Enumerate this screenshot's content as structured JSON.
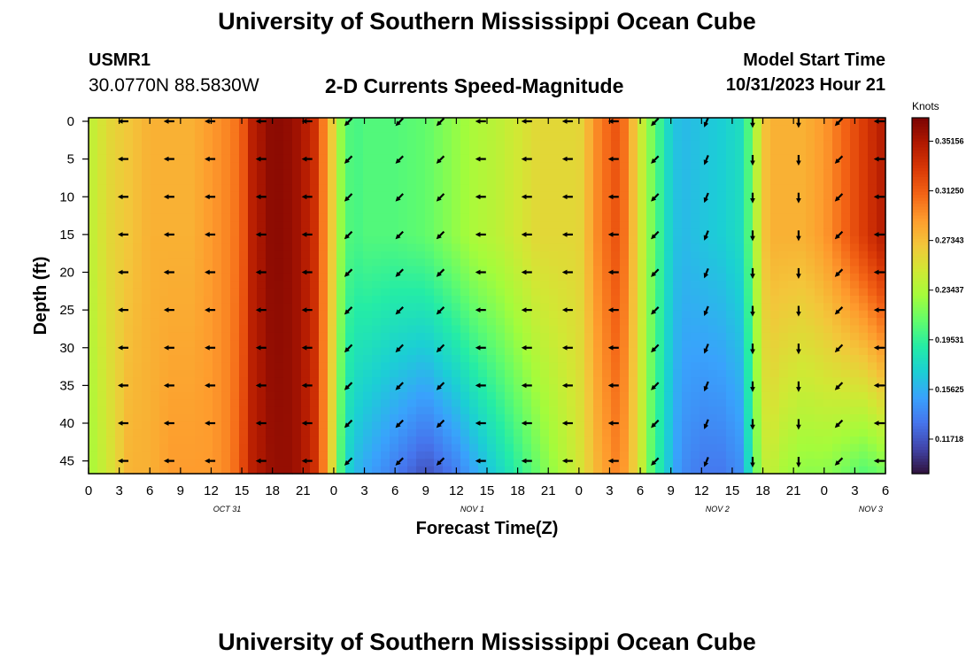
{
  "title": "University of Southern Mississippi Ocean Cube",
  "station": {
    "id": "USMR1",
    "coords": "30.0770N  88.5830W"
  },
  "model": {
    "label": "Model Start Time",
    "value": "10/31/2023 Hour 21"
  },
  "footer_title": "University of Southern Mississippi Ocean Cube",
  "chart_data": {
    "type": "heatmap",
    "title": "2-D Currents Speed-Magnitude",
    "xlabel": "Forecast Time(Z)",
    "ylabel": "Depth (ft)",
    "x_ticks": [
      "0",
      "3",
      "6",
      "9",
      "12",
      "15",
      "18",
      "21",
      "0",
      "3",
      "6",
      "9",
      "12",
      "15",
      "18",
      "21",
      "0",
      "3",
      "6",
      "9",
      "12",
      "15",
      "18",
      "21",
      "0",
      "3",
      "6"
    ],
    "date_labels": [
      {
        "label": "OCT 31",
        "tick_index": 4
      },
      {
        "label": "NOV 1",
        "tick_index": 12
      },
      {
        "label": "NOV 2",
        "tick_index": 20
      },
      {
        "label": "NOV 3",
        "tick_index": 25
      }
    ],
    "y_ticks": [
      "0",
      "5",
      "10",
      "15",
      "20",
      "25",
      "30",
      "35",
      "40",
      "45"
    ],
    "ylim": [
      0,
      48
    ],
    "x_range_hours": [
      0,
      78
    ],
    "colorbar": {
      "label": "Knots",
      "ticks": [
        "0.35156",
        "0.31250",
        "0.27343",
        "0.23437",
        "0.19531",
        "0.15625",
        "0.11718"
      ],
      "range": [
        0.09,
        0.37
      ],
      "colormap": [
        "#30123b",
        "#4145ab",
        "#4675ed",
        "#39a2fc",
        "#1bcfd4",
        "#24eca6",
        "#61fc6c",
        "#a4fc3b",
        "#d1e834",
        "#f3c63a",
        "#fe9b2d",
        "#f36315",
        "#d93806",
        "#b11901",
        "#7a0403"
      ]
    },
    "speed_profile": {
      "x_hours": [
        0,
        2,
        4,
        6,
        8,
        10,
        12,
        14,
        15,
        16,
        18,
        20,
        22,
        23,
        24,
        25,
        26,
        27,
        30,
        33,
        36,
        38,
        40,
        42,
        44,
        46,
        48,
        50,
        52,
        54,
        55,
        57,
        58,
        60,
        62,
        64,
        65,
        66,
        67,
        68,
        70,
        72,
        74,
        76,
        78
      ],
      "surface_knots": [
        0.24,
        0.26,
        0.27,
        0.28,
        0.28,
        0.28,
        0.29,
        0.3,
        0.31,
        0.345,
        0.365,
        0.36,
        0.34,
        0.3,
        0.26,
        0.21,
        0.2,
        0.205,
        0.205,
        0.21,
        0.225,
        0.235,
        0.24,
        0.25,
        0.26,
        0.26,
        0.26,
        0.3,
        0.32,
        0.25,
        0.22,
        0.17,
        0.16,
        0.165,
        0.17,
        0.18,
        0.22,
        0.27,
        0.28,
        0.28,
        0.28,
        0.29,
        0.31,
        0.33,
        0.35
      ],
      "bottom_knots": [
        0.23,
        0.25,
        0.28,
        0.28,
        0.29,
        0.29,
        0.29,
        0.3,
        0.32,
        0.345,
        0.36,
        0.36,
        0.34,
        0.3,
        0.25,
        0.18,
        0.16,
        0.15,
        0.13,
        0.11,
        0.13,
        0.15,
        0.17,
        0.19,
        0.21,
        0.23,
        0.25,
        0.28,
        0.3,
        0.25,
        0.21,
        0.16,
        0.14,
        0.13,
        0.13,
        0.14,
        0.2,
        0.24,
        0.24,
        0.23,
        0.22,
        0.22,
        0.21,
        0.2,
        0.21
      ]
    },
    "vector_columns": [
      {
        "hour": 3.5,
        "dir": "W"
      },
      {
        "hour": 8,
        "dir": "W"
      },
      {
        "hour": 12,
        "dir": "W"
      },
      {
        "hour": 17,
        "dir": "W"
      },
      {
        "hour": 21.5,
        "dir": "W"
      },
      {
        "hour": 25.5,
        "dir": "SW"
      },
      {
        "hour": 30.5,
        "dir": "SW"
      },
      {
        "hour": 34.5,
        "dir": "SW"
      },
      {
        "hour": 38.5,
        "dir": "W"
      },
      {
        "hour": 43,
        "dir": "W"
      },
      {
        "hour": 47,
        "dir": "W"
      },
      {
        "hour": 51.5,
        "dir": "W"
      },
      {
        "hour": 55.5,
        "dir": "SW"
      },
      {
        "hour": 60.5,
        "dir": "SSW"
      },
      {
        "hour": 65,
        "dir": "S"
      },
      {
        "hour": 69.5,
        "dir": "S"
      },
      {
        "hour": 73.5,
        "dir": "SW"
      },
      {
        "hour": 77.5,
        "dir": "W"
      }
    ],
    "vector_depths_ft": [
      0,
      5,
      10,
      15,
      20,
      25,
      30,
      35,
      40,
      45
    ]
  }
}
